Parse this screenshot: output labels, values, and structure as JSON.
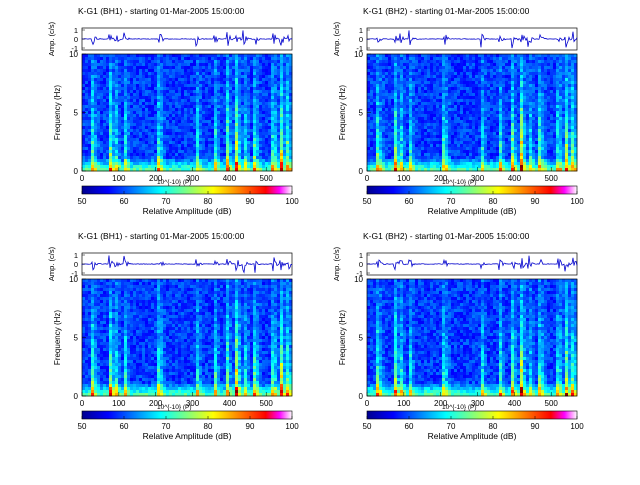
{
  "figure": {
    "panels": [
      {
        "title": "K-G1 (BH1) - starting 01-Mar-2005 15:00:00",
        "wave_ylabel": "Amp. (c/s)",
        "wave_ticks": [
          "1",
          "0",
          "-1"
        ],
        "spec_ylabel": "Frequency (Hz)",
        "spec_yticks": [
          "10",
          "5",
          "0"
        ],
        "time_ticks": [
          "0",
          "100",
          "200",
          "300",
          "400",
          "500"
        ],
        "cbar_ticks": [
          "50",
          "60",
          "70",
          "80",
          "90",
          "100"
        ],
        "cbar_exponent": "10^{-10} (P)",
        "cbar_label": "Relative Amplitude (dB)"
      },
      {
        "title": "K-G1 (BH2) - starting 01-Mar-2005 15:00:00",
        "wave_ylabel": "Amp. (c/s)",
        "wave_ticks": [
          "1",
          "0",
          "-1"
        ],
        "spec_ylabel": "Frequency (Hz)",
        "spec_yticks": [
          "10",
          "5",
          "0"
        ],
        "time_ticks": [
          "0",
          "100",
          "200",
          "300",
          "400",
          "500"
        ],
        "cbar_ticks": [
          "50",
          "60",
          "70",
          "80",
          "90",
          "100"
        ],
        "cbar_exponent": "10^{-10} (P)",
        "cbar_label": "Relative Amplitude (dB)"
      },
      {
        "title": "K-G1 (BH1) - starting 01-Mar-2005 15:00:00",
        "wave_ylabel": "Amp. (c/s)",
        "wave_ticks": [
          "1",
          "0",
          "-1"
        ],
        "spec_ylabel": "Frequency (Hz)",
        "spec_yticks": [
          "10",
          "5",
          "0"
        ],
        "time_ticks": [
          "0",
          "100",
          "200",
          "300",
          "400",
          "500"
        ],
        "cbar_ticks": [
          "50",
          "60",
          "70",
          "80",
          "90",
          "100"
        ],
        "cbar_exponent": "10^{-10} (P)",
        "cbar_label": "Relative Amplitude (dB)"
      },
      {
        "title": "K-G1 (BH2) - starting 01-Mar-2005 15:00:00",
        "wave_ylabel": "Amp. (c/s)",
        "wave_ticks": [
          "1",
          "0",
          "-1"
        ],
        "spec_ylabel": "Frequency (Hz)",
        "spec_yticks": [
          "10",
          "5",
          "0"
        ],
        "time_ticks": [
          "0",
          "100",
          "200",
          "300",
          "400",
          "500"
        ],
        "cbar_ticks": [
          "50",
          "60",
          "70",
          "80",
          "90",
          "100"
        ],
        "cbar_exponent": "10^{-10} (P)",
        "cbar_label": "Relative Amplitude (dB)"
      }
    ]
  },
  "chart_data": [
    {
      "type": "heatmap",
      "title": "K-G1 (BH1) - starting 01-Mar-2005 15:00:00",
      "xlabel": "",
      "ylabel": "Frequency (Hz)",
      "xlim": [
        0,
        570
      ],
      "ylim": [
        0,
        10
      ],
      "colorbar": {
        "label": "Relative Amplitude (dB)",
        "range": [
          50,
          100
        ]
      },
      "events_s": [
        30,
        75,
        90,
        115,
        210,
        310,
        360,
        395,
        420,
        440,
        470,
        520,
        540,
        560
      ],
      "colormap": "jet"
    },
    {
      "type": "heatmap",
      "title": "K-G1 (BH2) - starting 01-Mar-2005 15:00:00",
      "xlabel": "",
      "ylabel": "Frequency (Hz)",
      "xlim": [
        0,
        570
      ],
      "ylim": [
        0,
        10
      ],
      "colorbar": {
        "label": "Relative Amplitude (dB)",
        "range": [
          50,
          100
        ]
      },
      "events_s": [
        30,
        75,
        90,
        115,
        210,
        310,
        360,
        395,
        420,
        440,
        470,
        520,
        540,
        560
      ],
      "colormap": "jet"
    },
    {
      "type": "heatmap",
      "title": "K-G1 (BH1) - starting 01-Mar-2005 15:00:00",
      "xlabel": "",
      "ylabel": "Frequency (Hz)",
      "xlim": [
        0,
        570
      ],
      "ylim": [
        0,
        10
      ],
      "colorbar": {
        "label": "Relative Amplitude (dB)",
        "range": [
          50,
          100
        ]
      },
      "events_s": [
        30,
        75,
        90,
        115,
        210,
        310,
        360,
        395,
        420,
        440,
        470,
        520,
        540,
        560
      ],
      "colormap": "jet"
    },
    {
      "type": "heatmap",
      "title": "K-G1 (BH2) - starting 01-Mar-2005 15:00:00",
      "xlabel": "",
      "ylabel": "Frequency (Hz)",
      "xlim": [
        0,
        570
      ],
      "ylim": [
        0,
        10
      ],
      "colorbar": {
        "label": "Relative Amplitude (dB)",
        "range": [
          50,
          100
        ]
      },
      "events_s": [
        30,
        75,
        90,
        115,
        210,
        310,
        360,
        395,
        420,
        440,
        470,
        520,
        540,
        560
      ],
      "colormap": "jet"
    }
  ]
}
